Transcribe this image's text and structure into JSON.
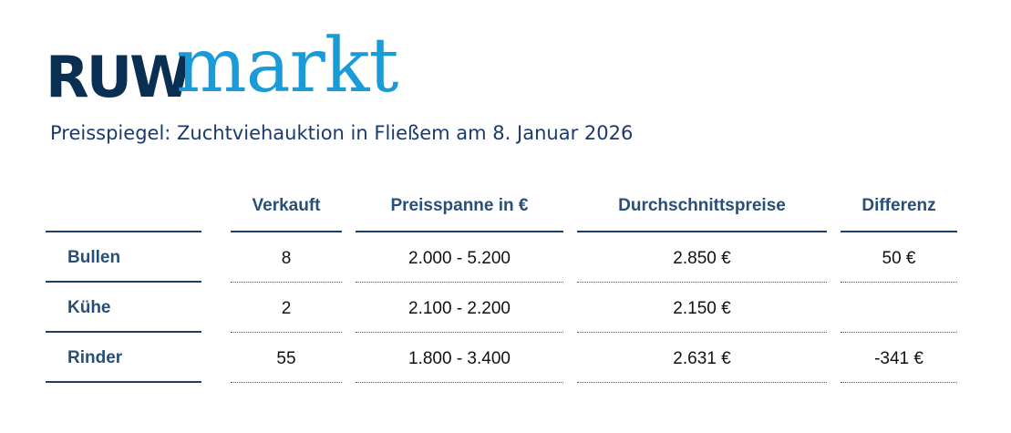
{
  "logo": {
    "part1": "RUW",
    "part2": "markt"
  },
  "subtitle": "Preisspiegel: Zuchtviehauktion in Fließem am 8. Januar 2026",
  "colors": {
    "navy": "#0b2f52",
    "cyan": "#1a9bd7",
    "header_text": "#284f78"
  },
  "table": {
    "headers": {
      "sold": "Verkauft",
      "range": "Preisspanne in €",
      "avg": "Durchschnittspreise",
      "diff": "Differenz"
    },
    "rows": [
      {
        "label": "Bullen",
        "sold": "8",
        "range": "2.000 - 5.200",
        "avg": "2.850 €",
        "diff": "50 €"
      },
      {
        "label": "Kühe",
        "sold": "2",
        "range": "2.100 - 2.200",
        "avg": "2.150 €",
        "diff": ""
      },
      {
        "label": "Rinder",
        "sold": "55",
        "range": "1.800 - 3.400",
        "avg": "2.631 €",
        "diff": "-341 €"
      }
    ]
  }
}
